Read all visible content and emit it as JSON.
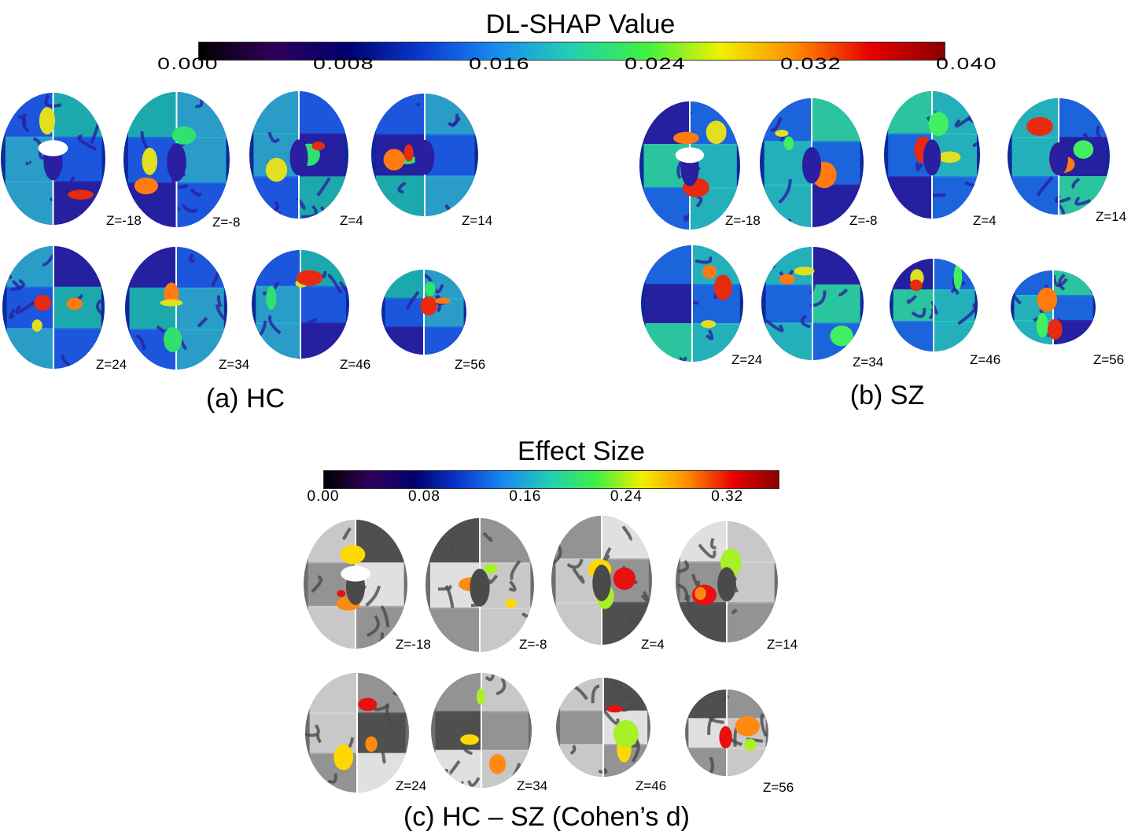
{
  "figure": {
    "colorbars": [
      {
        "id": "dlshap",
        "title": "DL-SHAP Value",
        "ticks": [
          "0.000",
          "0.008",
          "0.016",
          "0.024",
          "0.032",
          "0.040"
        ],
        "range": [
          0.0,
          0.04
        ],
        "colormap": [
          "#000000",
          "#30005a",
          "#000070",
          "#0a3ad0",
          "#1a8cf0",
          "#22d0b0",
          "#40f040",
          "#f0f000",
          "#ff8a00",
          "#e80000",
          "#8a0000"
        ]
      },
      {
        "id": "effect",
        "title": "Effect Size",
        "ticks": [
          "0.00",
          "0.08",
          "0.16",
          "0.24",
          "0.32"
        ],
        "range": [
          0.0,
          0.36
        ],
        "colormap": [
          "#000000",
          "#30005a",
          "#000070",
          "#0a3ad0",
          "#1a8cf0",
          "#22d0b0",
          "#40f040",
          "#f0f000",
          "#ff8a00",
          "#e80000",
          "#8a0000"
        ]
      }
    ],
    "panels": [
      {
        "id": "hc",
        "label": "(a) HC",
        "slices": [
          "Z=-18",
          "Z=-8",
          "Z=4",
          "Z=14",
          "Z=24",
          "Z=34",
          "Z=46",
          "Z=56"
        ]
      },
      {
        "id": "sz",
        "label": "(b) SZ",
        "slices": [
          "Z=-18",
          "Z=-8",
          "Z=4",
          "Z=14",
          "Z=24",
          "Z=34",
          "Z=46",
          "Z=56"
        ]
      },
      {
        "id": "diff",
        "label": "(c) HC – SZ (Cohen’s d)",
        "slices": [
          "Z=-18",
          "Z=-8",
          "Z=4",
          "Z=14",
          "Z=24",
          "Z=34",
          "Z=46",
          "Z=56"
        ]
      }
    ],
    "palettes": {
      "hc": {
        "bg": "#0a2a9a",
        "a": "#1f5ee8",
        "b": "#2fb0d0",
        "c": "#2a1fa0",
        "d": "#20c0b0",
        "hot": "#e82a10",
        "warm": "#ff7a10",
        "yel": "#e0e020",
        "grn": "#30e070"
      },
      "sz": {
        "bg": "#0a2a9a",
        "a": "#1f6ee8",
        "b": "#28c8c0",
        "c": "#2a1fa0",
        "d": "#30e0a0",
        "hot": "#e82a10",
        "warm": "#ff7a10",
        "yel": "#e0e020",
        "grn": "#40f060"
      },
      "diff": {
        "bg": "#6e6e6e",
        "a": "#9a9a9a",
        "b": "#d8d8d8",
        "c": "#4a4a4a",
        "d": "#f4f4f4",
        "hot": "#e81010",
        "warm": "#ff8a10",
        "yel": "#ffd800",
        "grn": "#a8f028"
      }
    }
  }
}
